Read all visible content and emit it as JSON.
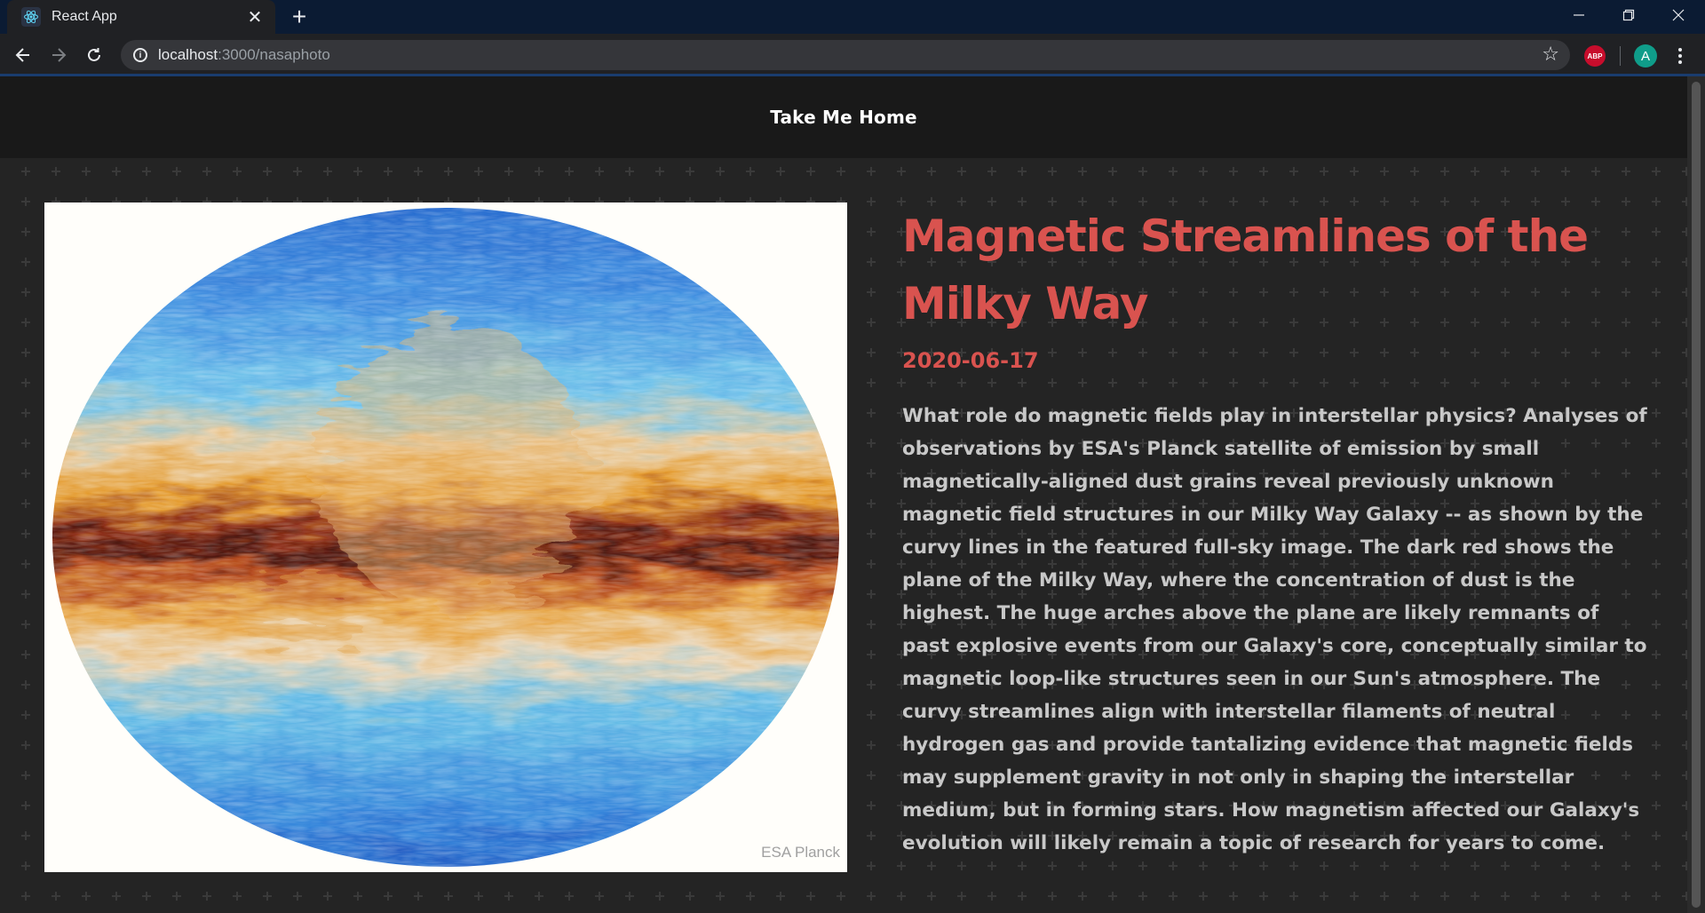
{
  "browser": {
    "tab_title": "React App",
    "tab_close": "✕",
    "new_tab": "+",
    "url_host": "localhost",
    "url_path": ":3000/nasaphoto",
    "profile_initial": "A",
    "adblock_label": "ABP",
    "icons": [
      "react-favicon",
      "back-arrow-icon",
      "forward-arrow-icon",
      "reload-icon",
      "info-icon",
      "star-icon",
      "kebab-menu-icon",
      "minimize-icon",
      "restore-icon",
      "close-window-icon"
    ]
  },
  "nav": {
    "home_label": "Take Me Home"
  },
  "apod": {
    "title": "Magnetic Streamlines of the Milky Way",
    "date": "2020-06-17",
    "image_credit": "ESA Planck",
    "explanation": "What role do magnetic fields play in interstellar physics? Analyses of observations by ESA's Planck satellite of emission by small magnetically-aligned dust grains reveal previously unknown magnetic field structures in our Milky Way Galaxy -- as shown by the curvy lines in the featured full-sky image. The dark red shows the plane of the Milky Way, where the concentration of dust is the highest. The huge arches above the plane are likely remnants of past explosive events from our Galaxy's core, conceptually similar to magnetic loop-like structures seen in our Sun's atmosphere. The curvy streamlines align with interstellar filaments of neutral hydrogen gas and provide tantalizing evidence that magnetic fields may supplement gravity in not only in shaping the interstellar medium, but in forming stars. How magnetism affected our Galaxy's evolution will likely remain a topic of research for years to come."
  },
  "colors": {
    "accent": "#d9534f",
    "page_bg": "#242424",
    "navbar_bg": "#191919",
    "body_text": "#c8c8c8"
  }
}
